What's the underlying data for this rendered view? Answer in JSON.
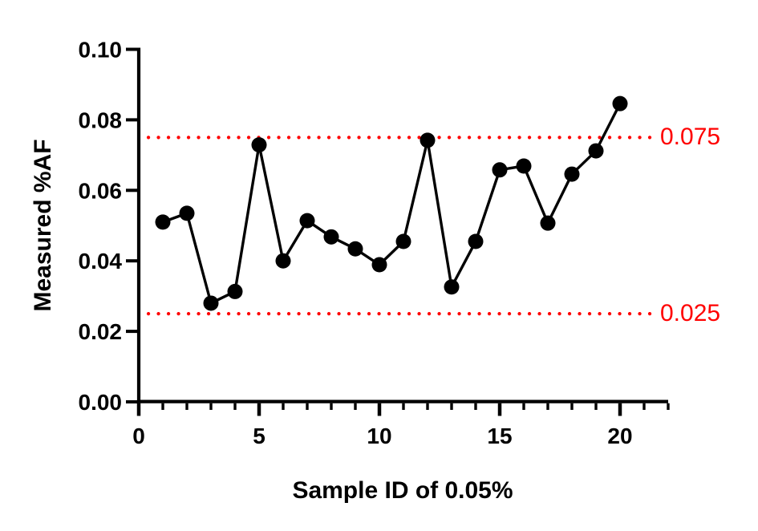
{
  "figure": {
    "background": "#ffffff"
  },
  "chart_data": {
    "type": "line",
    "title": "",
    "xlabel": "Sample ID of 0.05%",
    "ylabel": "Measured %AF",
    "x": [
      1,
      2,
      3,
      4,
      5,
      6,
      7,
      8,
      9,
      10,
      11,
      12,
      13,
      14,
      15,
      16,
      17,
      18,
      19,
      20
    ],
    "values": [
      0.051,
      0.0535,
      0.028,
      0.0313,
      0.0729,
      0.04,
      0.0514,
      0.0468,
      0.0434,
      0.0389,
      0.0455,
      0.0742,
      0.0326,
      0.0455,
      0.0658,
      0.0669,
      0.0507,
      0.0646,
      0.0712,
      0.0846
    ],
    "series_color": "#000000",
    "marker": "filled-circle",
    "xlim": [
      0,
      22
    ],
    "ylim": [
      0,
      0.1
    ],
    "x_major_ticks": [
      0,
      5,
      10,
      15,
      20
    ],
    "x_tick_labels": [
      "0",
      "5",
      "10",
      "15",
      "20"
    ],
    "x_minor_tick_step": 1,
    "y_ticks": [
      0,
      0.02,
      0.04,
      0.06,
      0.08,
      0.1
    ],
    "y_tick_labels": [
      "0.00",
      "0.02",
      "0.04",
      "0.06",
      "0.08",
      "0.10"
    ],
    "grid": false,
    "legend": "none",
    "reference_lines": [
      {
        "value": 0.075,
        "label": "0.075",
        "color": "#ff0000",
        "style": "dotted",
        "label_position": "right"
      },
      {
        "value": 0.025,
        "label": "0.025",
        "color": "#ff0000",
        "style": "dotted",
        "label_position": "right"
      }
    ]
  }
}
